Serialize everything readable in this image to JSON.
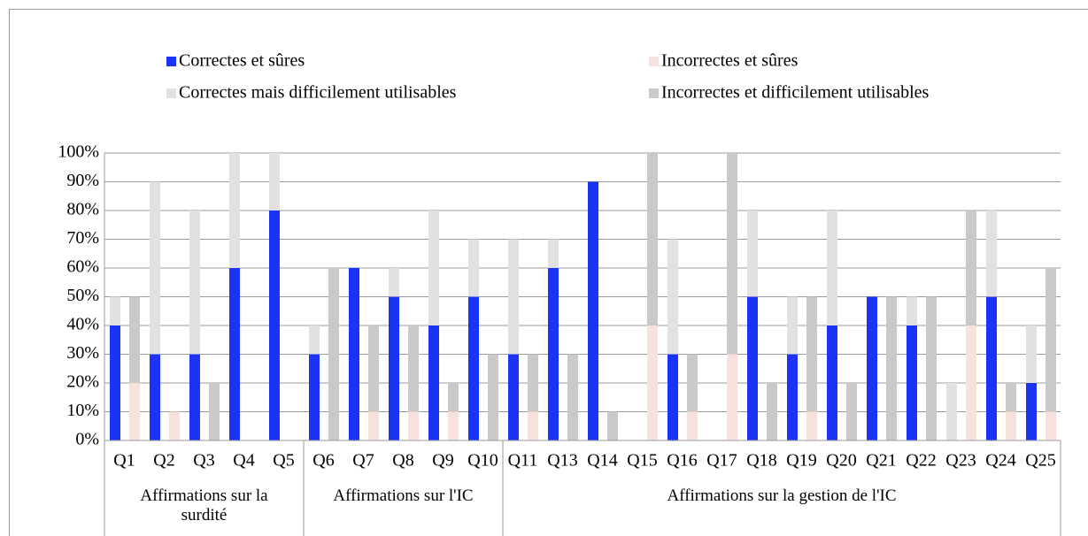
{
  "chart_data": {
    "type": "bar",
    "groups": [
      {
        "label": "Affirmations sur la surdité",
        "categories": [
          "Q1",
          "Q2",
          "Q3",
          "Q4",
          "Q5"
        ]
      },
      {
        "label": "Affirmations sur l'IC",
        "categories": [
          "Q6",
          "Q7",
          "Q8",
          "Q9",
          "Q10"
        ]
      },
      {
        "label": "Affirmations sur la gestion de l'IC",
        "categories": [
          "Q11",
          "Q13",
          "Q14",
          "Q15",
          "Q16",
          "Q17",
          "Q18",
          "Q19",
          "Q20",
          "Q21",
          "Q22",
          "Q23",
          "Q24",
          "Q25"
        ]
      }
    ],
    "series": [
      {
        "name": "Correctes et sûres",
        "color": "#1a33f5",
        "values": [
          40,
          30,
          30,
          60,
          80,
          30,
          60,
          50,
          40,
          50,
          30,
          60,
          90,
          0,
          30,
          0,
          50,
          30,
          40,
          50,
          40,
          0,
          50,
          20
        ]
      },
      {
        "name": "Incorrectes et sûres",
        "color": "#f6e1dd",
        "values": [
          20,
          10,
          0,
          0,
          0,
          0,
          10,
          10,
          10,
          0,
          10,
          0,
          0,
          40,
          10,
          30,
          0,
          10,
          0,
          0,
          0,
          40,
          10,
          10
        ]
      },
      {
        "name": "Correctes mais difficilement utilisables",
        "color": "#e1e1e1",
        "values": [
          10,
          60,
          50,
          40,
          20,
          10,
          0,
          10,
          40,
          20,
          40,
          10,
          0,
          0,
          40,
          0,
          30,
          20,
          40,
          0,
          10,
          20,
          30,
          20
        ]
      },
      {
        "name": "Incorrectes et difficilement utilisables",
        "color": "#c9c9c9",
        "values": [
          30,
          0,
          20,
          0,
          0,
          60,
          30,
          30,
          10,
          30,
          20,
          30,
          10,
          60,
          20,
          70,
          20,
          40,
          20,
          50,
          50,
          40,
          10,
          50
        ]
      }
    ],
    "ylim": [
      0,
      100
    ],
    "yticks": [
      {
        "value": 0,
        "label": "0%"
      },
      {
        "value": 10,
        "label": "10%"
      },
      {
        "value": 20,
        "label": "20%"
      },
      {
        "value": 30,
        "label": "30%"
      },
      {
        "value": 40,
        "label": "40%"
      },
      {
        "value": 50,
        "label": "50%"
      },
      {
        "value": 60,
        "label": "60%"
      },
      {
        "value": 70,
        "label": "70%"
      },
      {
        "value": 80,
        "label": "80%"
      },
      {
        "value": 90,
        "label": "90%"
      },
      {
        "value": 100,
        "label": "100%"
      }
    ],
    "grid": true
  }
}
